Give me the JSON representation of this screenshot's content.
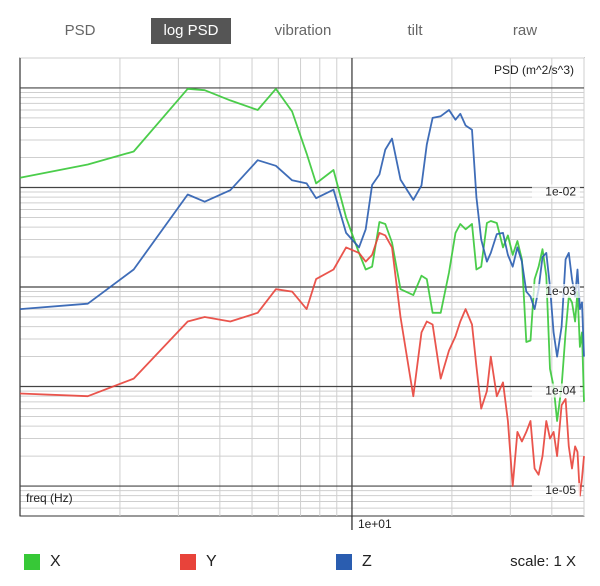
{
  "tabs": [
    {
      "label": "PSD",
      "active": false
    },
    {
      "label": "log PSD",
      "active": true
    },
    {
      "label": "vibration",
      "active": false
    },
    {
      "label": "tilt",
      "active": false
    },
    {
      "label": "raw",
      "active": false
    }
  ],
  "legend": [
    {
      "label": "X",
      "color": "#37c837"
    },
    {
      "label": "Y",
      "color": "#e8433a"
    },
    {
      "label": "Z",
      "color": "#2a5db0"
    }
  ],
  "scale_label": "scale: 1 X",
  "chart_data": {
    "type": "line",
    "ylabel": "PSD (m^2/s^3)",
    "xlabel": "freq (Hz)",
    "x_scale": "log",
    "y_scale": "log",
    "xlim": [
      1.0,
      50.0
    ],
    "ylim": [
      5e-06,
      0.2
    ],
    "x_tick_labels": [
      {
        "value": 10,
        "label": "1e+01"
      }
    ],
    "y_tick_labels": [
      {
        "value": 0.01,
        "label": "1e-02"
      },
      {
        "value": 0.001,
        "label": "1e-03"
      },
      {
        "value": 0.0001,
        "label": "1e-04"
      },
      {
        "value": 1e-05,
        "label": "1e-05"
      }
    ],
    "grid": true,
    "series": [
      {
        "name": "X",
        "color": "#37c837",
        "points": [
          [
            1.0,
            0.0125
          ],
          [
            1.6,
            0.017
          ],
          [
            2.2,
            0.023
          ],
          [
            3.2,
            0.098
          ],
          [
            3.6,
            0.095
          ],
          [
            4.3,
            0.075
          ],
          [
            5.2,
            0.06
          ],
          [
            5.9,
            0.098
          ],
          [
            6.6,
            0.058
          ],
          [
            7.3,
            0.022
          ],
          [
            7.8,
            0.011
          ],
          [
            8.8,
            0.015
          ],
          [
            9.6,
            0.005
          ],
          [
            10.5,
            0.0022
          ],
          [
            11.0,
            0.0015
          ],
          [
            11.5,
            0.0016
          ],
          [
            12.1,
            0.0045
          ],
          [
            12.6,
            0.0043
          ],
          [
            13.2,
            0.0028
          ],
          [
            14.0,
            0.00095
          ],
          [
            15.3,
            0.00083
          ],
          [
            16.2,
            0.0013
          ],
          [
            16.8,
            0.0012
          ],
          [
            17.5,
            0.00055
          ],
          [
            18.5,
            0.00055
          ],
          [
            19.6,
            0.0014
          ],
          [
            20.5,
            0.0035
          ],
          [
            21.2,
            0.0043
          ],
          [
            22.0,
            0.0038
          ],
          [
            23.0,
            0.0043
          ],
          [
            23.7,
            0.0015
          ],
          [
            24.5,
            0.0016
          ],
          [
            25.5,
            0.0044
          ],
          [
            26.2,
            0.0046
          ],
          [
            27.3,
            0.0044
          ],
          [
            28.5,
            0.0025
          ],
          [
            29.5,
            0.0033
          ],
          [
            30.5,
            0.0021
          ],
          [
            31.5,
            0.0029
          ],
          [
            32.5,
            0.0019
          ],
          [
            33.5,
            0.00028
          ],
          [
            34.5,
            0.00029
          ],
          [
            35.5,
            0.0012
          ],
          [
            36.5,
            0.0016
          ],
          [
            37.5,
            0.0024
          ],
          [
            38.5,
            0.0013
          ],
          [
            39.5,
            0.00015
          ],
          [
            40.5,
            0.0001
          ],
          [
            41.5,
            4.5e-05
          ],
          [
            42.8,
            0.0001
          ],
          [
            44.0,
            0.00035
          ],
          [
            45.0,
            0.0008
          ],
          [
            46.0,
            0.0007
          ],
          [
            47.0,
            0.00045
          ],
          [
            47.8,
            0.0009
          ],
          [
            48.6,
            0.00025
          ],
          [
            49.3,
            0.00035
          ],
          [
            50.0,
            7e-05
          ]
        ]
      },
      {
        "name": "Y",
        "color": "#e8433a",
        "points": [
          [
            1.0,
            8.5e-05
          ],
          [
            1.6,
            8e-05
          ],
          [
            2.2,
            0.00012
          ],
          [
            3.2,
            0.00045
          ],
          [
            3.6,
            0.0005
          ],
          [
            4.3,
            0.00045
          ],
          [
            5.2,
            0.00055
          ],
          [
            5.9,
            0.00095
          ],
          [
            6.6,
            0.0009
          ],
          [
            7.3,
            0.0006
          ],
          [
            7.8,
            0.0012
          ],
          [
            8.8,
            0.0015
          ],
          [
            9.6,
            0.0025
          ],
          [
            10.5,
            0.0022
          ],
          [
            11.0,
            0.0018
          ],
          [
            11.5,
            0.0021
          ],
          [
            12.1,
            0.0035
          ],
          [
            12.6,
            0.0033
          ],
          [
            13.2,
            0.0025
          ],
          [
            14.0,
            0.0005
          ],
          [
            15.3,
            8e-05
          ],
          [
            16.2,
            0.00035
          ],
          [
            16.8,
            0.00045
          ],
          [
            17.5,
            0.00042
          ],
          [
            18.5,
            0.00012
          ],
          [
            19.6,
            0.00023
          ],
          [
            20.5,
            0.00032
          ],
          [
            21.2,
            0.00045
          ],
          [
            22.0,
            0.0006
          ],
          [
            23.0,
            0.00042
          ],
          [
            23.7,
            0.00016
          ],
          [
            24.5,
            6e-05
          ],
          [
            25.5,
            9e-05
          ],
          [
            26.2,
            0.0002
          ],
          [
            27.3,
            8e-05
          ],
          [
            28.5,
            0.00011
          ],
          [
            29.5,
            4.5e-05
          ],
          [
            30.5,
            1e-05
          ],
          [
            31.5,
            3.5e-05
          ],
          [
            32.5,
            2.8e-05
          ],
          [
            33.5,
            3.5e-05
          ],
          [
            34.5,
            4.5e-05
          ],
          [
            35.5,
            1.5e-05
          ],
          [
            36.5,
            1.3e-05
          ],
          [
            37.5,
            2e-05
          ],
          [
            38.5,
            4.5e-05
          ],
          [
            39.5,
            3e-05
          ],
          [
            40.5,
            3.5e-05
          ],
          [
            41.5,
            2e-05
          ],
          [
            42.8,
            6.5e-05
          ],
          [
            44.0,
            7.5e-05
          ],
          [
            45.0,
            2.5e-05
          ],
          [
            46.0,
            1.5e-05
          ],
          [
            47.0,
            2.5e-05
          ],
          [
            47.8,
            2.2e-05
          ],
          [
            48.6,
            8e-06
          ],
          [
            49.3,
            1.2e-05
          ],
          [
            50.0,
            2e-05
          ]
        ]
      },
      {
        "name": "Z",
        "color": "#2a5db0",
        "points": [
          [
            1.0,
            0.0006
          ],
          [
            1.6,
            0.00068
          ],
          [
            2.2,
            0.0015
          ],
          [
            3.2,
            0.0085
          ],
          [
            3.6,
            0.0072
          ],
          [
            4.3,
            0.0094
          ],
          [
            5.2,
            0.0188
          ],
          [
            5.9,
            0.0165
          ],
          [
            6.6,
            0.0118
          ],
          [
            7.3,
            0.011
          ],
          [
            7.8,
            0.0078
          ],
          [
            8.8,
            0.0095
          ],
          [
            9.6,
            0.0035
          ],
          [
            10.5,
            0.0025
          ],
          [
            11.0,
            0.0038
          ],
          [
            11.5,
            0.0106
          ],
          [
            12.1,
            0.0135
          ],
          [
            12.6,
            0.024
          ],
          [
            13.2,
            0.031
          ],
          [
            14.0,
            0.012
          ],
          [
            15.3,
            0.0075
          ],
          [
            16.2,
            0.0105
          ],
          [
            16.8,
            0.027
          ],
          [
            17.5,
            0.05
          ],
          [
            18.5,
            0.052
          ],
          [
            19.6,
            0.06
          ],
          [
            20.5,
            0.048
          ],
          [
            21.2,
            0.055
          ],
          [
            22.0,
            0.042
          ],
          [
            23.0,
            0.038
          ],
          [
            23.7,
            0.008
          ],
          [
            24.5,
            0.003
          ],
          [
            25.5,
            0.0018
          ],
          [
            26.2,
            0.0022
          ],
          [
            27.3,
            0.0034
          ],
          [
            28.5,
            0.0035
          ],
          [
            29.5,
            0.0021
          ],
          [
            30.5,
            0.0016
          ],
          [
            31.5,
            0.0025
          ],
          [
            32.5,
            0.0018
          ],
          [
            33.5,
            0.0009
          ],
          [
            34.5,
            0.0008
          ],
          [
            35.5,
            0.0006
          ],
          [
            36.5,
            0.00095
          ],
          [
            37.5,
            0.002
          ],
          [
            38.5,
            0.0022
          ],
          [
            39.5,
            0.001
          ],
          [
            40.5,
            0.00035
          ],
          [
            41.5,
            0.0002
          ],
          [
            42.8,
            0.0004
          ],
          [
            44.0,
            0.0019
          ],
          [
            45.0,
            0.0022
          ],
          [
            46.0,
            0.0012
          ],
          [
            47.0,
            0.0008
          ],
          [
            47.8,
            0.0015
          ],
          [
            48.6,
            0.0006
          ],
          [
            49.3,
            0.0007
          ],
          [
            50.0,
            0.0002
          ]
        ]
      }
    ]
  }
}
